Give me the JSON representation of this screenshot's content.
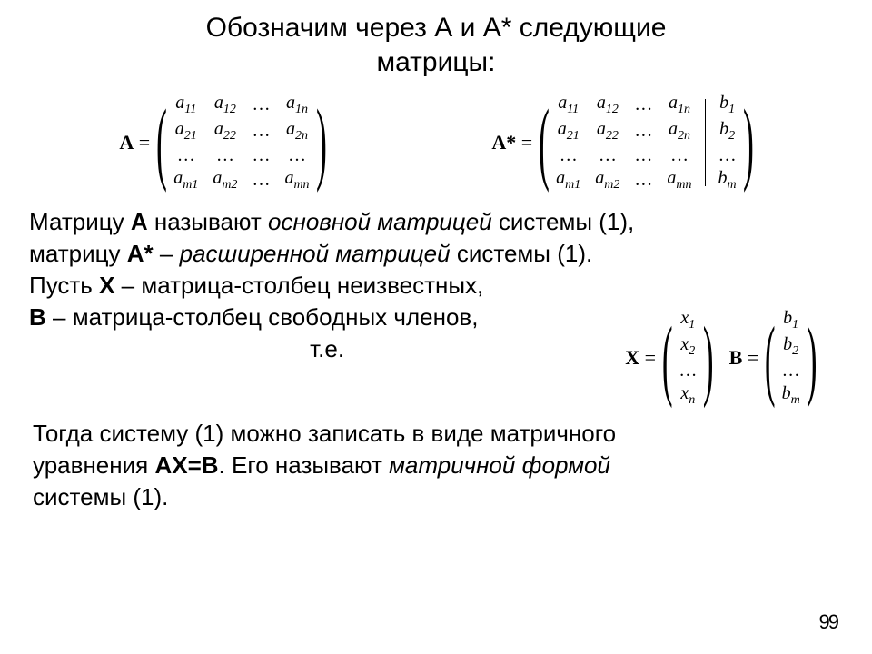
{
  "title_line1": "Обозначим через  А  и  А*  следующие",
  "title_line2": "матрицы:",
  "matA": {
    "label_name": "A",
    "eq": " =",
    "rows": [
      [
        "a",
        "11",
        "a",
        "12",
        "…",
        "a",
        "1n"
      ],
      [
        "a",
        "21",
        "a",
        "22",
        "…",
        "a",
        "2n"
      ],
      [
        "…",
        "",
        "…",
        "",
        "…",
        "…",
        ""
      ],
      [
        "a",
        "m1",
        "a",
        "m2",
        "…",
        "a",
        "mn"
      ]
    ]
  },
  "matAstar": {
    "label_name": "A*",
    "eq": " =",
    "rows": [
      [
        "a",
        "11",
        "a",
        "12",
        "…",
        "a",
        "1n"
      ],
      [
        "a",
        "21",
        "a",
        "22",
        "…",
        "a",
        "2n"
      ],
      [
        "…",
        "",
        "…",
        "",
        "…",
        "…",
        ""
      ],
      [
        "a",
        "m1",
        "a",
        "m2",
        "…",
        "a",
        "mn"
      ]
    ],
    "bcol": [
      [
        "b",
        "1"
      ],
      [
        "b",
        "2"
      ],
      [
        "…",
        ""
      ],
      [
        "b",
        "m"
      ]
    ]
  },
  "para1": {
    "t1": "Матрицу   ",
    "A": "А",
    "t2": "  называют ",
    "it1": "основной матрицей",
    "t3": " системы  (1),",
    "t4": "матрицу   ",
    "As": "А*",
    "t5": " – ",
    "it2": "расширенной матрицей",
    "t6": " системы (1).",
    "t7": "Пусть   ",
    "X": "Х",
    "t8": " – матрица-столбец неизвестных,"
  },
  "para_xb": {
    "t1": "В",
    "t2": " – матрица-столбец свободных членов,",
    "te": "т.е."
  },
  "matX": {
    "label_name": "X",
    "eq": " =",
    "rows": [
      [
        "x",
        "1"
      ],
      [
        "x",
        "2"
      ],
      [
        "…",
        ""
      ],
      [
        "x",
        "n"
      ]
    ]
  },
  "matB": {
    "label_name": "B",
    "eq": " =",
    "rows": [
      [
        "b",
        "1"
      ],
      [
        "b",
        "2"
      ],
      [
        "…",
        ""
      ],
      [
        "b",
        "m"
      ]
    ]
  },
  "para2": {
    "t1": "Тогда систему (1) можно записать в виде матричного",
    "t2": "уравнения  ",
    "AXB": "АХ=В",
    "t3": ".  Его называют ",
    "it1": "матричной формой",
    "t4": "системы  (1)."
  },
  "pagenum": "99"
}
